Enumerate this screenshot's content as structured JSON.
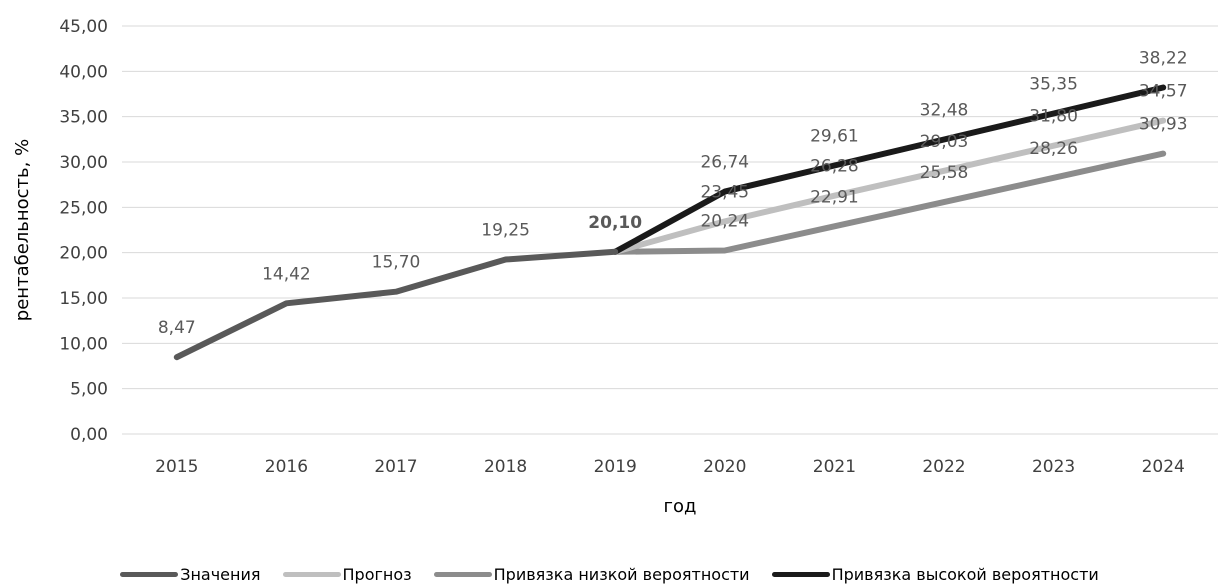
{
  "chart_data": {
    "type": "line",
    "categories": [
      "2015",
      "2016",
      "2017",
      "2018",
      "2019",
      "2020",
      "2021",
      "2022",
      "2023",
      "2024"
    ],
    "xlabel": "год",
    "ylabel": "рентабельность, %",
    "ylim": [
      0,
      45
    ],
    "yticks": [
      "0,00",
      "5,00",
      "10,00",
      "15,00",
      "20,00",
      "25,00",
      "30,00",
      "35,00",
      "40,00",
      "45,00"
    ],
    "grid": true,
    "legend_position": "bottom",
    "series": [
      {
        "name": "Значения",
        "color": "#595959",
        "values": [
          8.47,
          14.42,
          15.7,
          19.25,
          20.1,
          null,
          null,
          null,
          null,
          null
        ],
        "labels": [
          "8,47",
          "14,42",
          "15,70",
          "19,25",
          "20,10",
          "",
          "",
          "",
          "",
          ""
        ]
      },
      {
        "name": "Прогноз",
        "color": "#bfbfbf",
        "values": [
          null,
          null,
          null,
          null,
          20.1,
          23.45,
          26.28,
          29.03,
          31.8,
          34.57
        ],
        "labels": [
          "",
          "",
          "",
          "",
          "",
          "23,45",
          "26,28",
          "29,03",
          "31,80",
          "34,57"
        ]
      },
      {
        "name": "Привязка низкой вероятности",
        "color": "#8c8c8c",
        "values": [
          null,
          null,
          null,
          null,
          20.1,
          20.24,
          22.91,
          25.58,
          28.26,
          30.93
        ],
        "labels": [
          "",
          "",
          "",
          "",
          "",
          "20,24",
          "22,91",
          "25,58",
          "28,26",
          "30,93"
        ]
      },
      {
        "name": "Привязка высокой вероятности",
        "color": "#1a1a1a",
        "values": [
          null,
          null,
          null,
          null,
          20.1,
          26.74,
          29.61,
          32.48,
          35.35,
          38.22
        ],
        "labels": [
          "",
          "",
          "",
          "",
          "",
          "26,74",
          "29,61",
          "32,48",
          "35,35",
          "38,22"
        ]
      }
    ]
  }
}
